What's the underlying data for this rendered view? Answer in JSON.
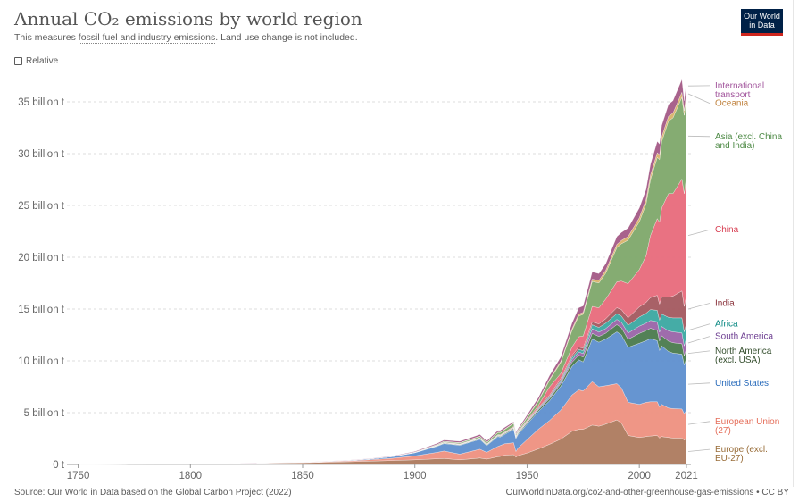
{
  "header": {
    "title": "Annual CO₂ emissions by world region",
    "subtitle_plain": "This measures ",
    "subtitle_term": "fossil fuel and industry emissions",
    "subtitle_rest": ". Land use change is not included."
  },
  "logo": {
    "line1": "Our World",
    "line2": "in Data",
    "bg_color": "#002147",
    "accent_color": "#ce261e"
  },
  "controls": {
    "relative_label": "Relative",
    "relative_checked": false
  },
  "footer": {
    "source": "Source: Our World in Data based on the Global Carbon Project (2022)",
    "link": "OurWorldInData.org/co2-and-other-greenhouse-gas-emissions • CC BY"
  },
  "chart_data": {
    "type": "area",
    "stacked": true,
    "title": "Annual CO₂ emissions by world region",
    "subtitle": "This measures fossil fuel and industry emissions. Land use change is not included.",
    "x": [
      1750,
      1800,
      1850,
      1870,
      1880,
      1890,
      1900,
      1910,
      1913,
      1920,
      1929,
      1932,
      1937,
      1938,
      1940,
      1944,
      1945,
      1946,
      1950,
      1955,
      1960,
      1965,
      1970,
      1973,
      1975,
      1979,
      1982,
      1985,
      1990,
      1992,
      1995,
      2000,
      2003,
      2005,
      2008,
      2009,
      2010,
      2013,
      2015,
      2019,
      2020,
      2021
    ],
    "xlim": [
      1745,
      2023
    ],
    "ylim": [
      0,
      37.5
    ],
    "yticks": [
      0,
      5,
      10,
      15,
      20,
      25,
      30,
      35
    ],
    "ytick_labels": [
      "0 t",
      "5 billion t",
      "10 billion t",
      "15 billion t",
      "20 billion t",
      "25 billion t",
      "30 billion t",
      "35 billion t"
    ],
    "xticks": [
      1750,
      1800,
      1850,
      1900,
      1950,
      2000,
      2021
    ],
    "xtick_labels": [
      "1750",
      "1800",
      "1850",
      "1900",
      "1950",
      "2000",
      "2021"
    ],
    "unit": "billion t",
    "grid": "horizontal dashed",
    "legend_position": "right (labels at series ends)",
    "series": [
      {
        "name": "Europe (excl. EU-27)",
        "color": "#a2559c",
        "fill": "#ad7a5e",
        "values": [
          0.009,
          0.03,
          0.16,
          0.26,
          0.32,
          0.38,
          0.45,
          0.55,
          0.58,
          0.45,
          0.62,
          0.52,
          0.75,
          0.78,
          0.9,
          0.95,
          0.7,
          0.85,
          1.1,
          1.5,
          1.95,
          2.45,
          3.2,
          3.4,
          3.4,
          3.8,
          3.7,
          3.9,
          4.3,
          4.0,
          2.8,
          2.6,
          2.7,
          2.75,
          2.8,
          2.55,
          2.7,
          2.6,
          2.55,
          2.55,
          2.35,
          2.5
        ]
      },
      {
        "name": "European Union (27)",
        "color": "#e56e5a",
        "fill": "#ee9080",
        "values": [
          0.0,
          0.002,
          0.03,
          0.08,
          0.14,
          0.22,
          0.38,
          0.62,
          0.72,
          0.55,
          0.85,
          0.65,
          1.0,
          1.05,
          1.1,
          1.15,
          0.55,
          0.75,
          1.3,
          1.9,
          2.3,
          2.8,
          3.5,
          3.8,
          3.7,
          4.2,
          3.8,
          3.7,
          3.5,
          3.4,
          3.2,
          3.2,
          3.3,
          3.3,
          3.25,
          3.0,
          3.1,
          2.85,
          2.85,
          2.8,
          2.55,
          2.75
        ]
      },
      {
        "name": "United States",
        "color": "#4c6a9c",
        "fill": "#5e8fcf",
        "values": [
          0.0,
          0.0003,
          0.005,
          0.04,
          0.07,
          0.15,
          0.3,
          0.6,
          0.72,
          0.85,
          0.95,
          0.65,
          0.95,
          0.82,
          0.9,
          1.3,
          1.25,
          1.3,
          1.5,
          1.7,
          1.9,
          2.3,
          2.75,
          2.9,
          2.8,
          4.1,
          4.3,
          4.5,
          5.0,
          5.1,
          5.3,
          5.9,
          5.95,
          6.1,
          5.9,
          5.45,
          5.65,
          5.45,
          5.35,
          5.3,
          4.7,
          5.0
        ]
      },
      {
        "name": "North America (excl. USA)",
        "color": "#286bbb",
        "fill": "#4a7a4d",
        "values": [
          0.0,
          0.0,
          0.0005,
          0.002,
          0.004,
          0.008,
          0.02,
          0.04,
          0.05,
          0.05,
          0.06,
          0.05,
          0.06,
          0.06,
          0.07,
          0.08,
          0.08,
          0.09,
          0.12,
          0.16,
          0.2,
          0.27,
          0.4,
          0.45,
          0.46,
          0.55,
          0.55,
          0.56,
          0.7,
          0.7,
          0.78,
          0.95,
          0.97,
          1.0,
          0.98,
          0.92,
          0.97,
          1.0,
          1.0,
          1.0,
          0.9,
          0.95
        ]
      },
      {
        "name": "South America",
        "color": "#883039",
        "fill": "#9a64a8",
        "values": [
          0.0,
          0.0,
          0.0,
          0.0005,
          0.001,
          0.002,
          0.005,
          0.01,
          0.012,
          0.015,
          0.02,
          0.02,
          0.025,
          0.03,
          0.03,
          0.035,
          0.035,
          0.04,
          0.05,
          0.08,
          0.12,
          0.16,
          0.25,
          0.3,
          0.35,
          0.45,
          0.42,
          0.45,
          0.5,
          0.52,
          0.6,
          0.7,
          0.72,
          0.75,
          0.85,
          0.85,
          0.9,
          1.0,
          1.05,
          1.05,
          0.95,
          1.05
        ]
      },
      {
        "name": "Africa",
        "color": "#d73c50",
        "fill": "#3ba8a1",
        "values": [
          0.0,
          0.0,
          0.0,
          0.0005,
          0.001,
          0.002,
          0.005,
          0.01,
          0.013,
          0.015,
          0.02,
          0.022,
          0.025,
          0.028,
          0.03,
          0.035,
          0.035,
          0.04,
          0.05,
          0.07,
          0.1,
          0.14,
          0.22,
          0.25,
          0.28,
          0.38,
          0.45,
          0.53,
          0.55,
          0.6,
          0.75,
          0.88,
          0.95,
          1.05,
          1.1,
          1.15,
          1.2,
          1.3,
          1.35,
          1.45,
          1.35,
          1.4
        ]
      },
      {
        "name": "India",
        "color": "#00847e",
        "fill": "#a3585f",
        "values": [
          0.0,
          0.0,
          0.0,
          0.001,
          0.002,
          0.005,
          0.01,
          0.02,
          0.025,
          0.03,
          0.035,
          0.035,
          0.04,
          0.045,
          0.05,
          0.06,
          0.065,
          0.065,
          0.07,
          0.08,
          0.12,
          0.17,
          0.2,
          0.23,
          0.25,
          0.28,
          0.35,
          0.42,
          0.58,
          0.63,
          0.72,
          0.98,
          1.05,
          1.15,
          1.45,
          1.55,
          1.65,
          1.95,
          2.1,
          2.6,
          2.45,
          2.7
        ]
      },
      {
        "name": "China",
        "color": "#970046",
        "fill": "#e86a7b",
        "values": [
          0.0,
          0.0,
          0.0,
          0.0,
          0.0,
          0.0,
          0.0,
          0.02,
          0.025,
          0.03,
          0.035,
          0.035,
          0.04,
          0.045,
          0.05,
          0.06,
          0.05,
          0.05,
          0.08,
          0.2,
          0.8,
          0.5,
          0.8,
          1.0,
          1.15,
          1.5,
          1.55,
          1.9,
          2.5,
          2.75,
          3.3,
          3.6,
          4.5,
          6.0,
          7.4,
          7.9,
          8.6,
          10.0,
          9.9,
          10.8,
          10.9,
          11.5
        ]
      },
      {
        "name": "Asia (excl. China and India)",
        "color": "#6d3e91",
        "fill": "#7ea86a",
        "values": [
          0.0,
          0.0,
          0.0,
          0.0003,
          0.001,
          0.005,
          0.02,
          0.06,
          0.08,
          0.1,
          0.12,
          0.13,
          0.2,
          0.22,
          0.25,
          0.3,
          0.15,
          0.1,
          0.25,
          0.4,
          0.65,
          1.05,
          1.6,
          2.0,
          2.1,
          2.4,
          2.4,
          2.5,
          3.3,
          3.6,
          4.2,
          4.6,
          5.0,
          5.4,
          5.9,
          6.05,
          6.4,
          7.0,
          7.3,
          7.9,
          7.55,
          7.7
        ]
      },
      {
        "name": "Oceania",
        "color": "#c05917",
        "fill": "#d9b36a",
        "values": [
          0.0,
          0.0,
          0.0,
          0.002,
          0.004,
          0.006,
          0.01,
          0.02,
          0.02,
          0.025,
          0.03,
          0.03,
          0.035,
          0.035,
          0.04,
          0.045,
          0.045,
          0.05,
          0.06,
          0.08,
          0.1,
          0.12,
          0.16,
          0.18,
          0.19,
          0.23,
          0.25,
          0.27,
          0.31,
          0.32,
          0.35,
          0.4,
          0.42,
          0.44,
          0.46,
          0.46,
          0.46,
          0.46,
          0.46,
          0.47,
          0.45,
          0.46
        ]
      },
      {
        "name": "International transport",
        "color": "#58ac8c",
        "fill": "#a35a86",
        "values": [
          0.0,
          0.0,
          0.01,
          0.02,
          0.03,
          0.04,
          0.06,
          0.1,
          0.12,
          0.13,
          0.16,
          0.13,
          0.16,
          0.17,
          0.16,
          0.12,
          0.13,
          0.15,
          0.2,
          0.28,
          0.35,
          0.42,
          0.55,
          0.62,
          0.62,
          0.7,
          0.65,
          0.65,
          0.75,
          0.78,
          0.82,
          0.95,
          0.98,
          1.05,
          1.1,
          1.05,
          1.1,
          1.15,
          1.2,
          1.25,
          0.95,
          1.05
        ]
      }
    ],
    "labels": [
      {
        "series": "International transport",
        "lines": [
          "International",
          "transport"
        ],
        "color": "#a2559c",
        "y": 36.3
      },
      {
        "series": "Oceania",
        "lines": [
          "Oceania"
        ],
        "color": "#c0823e",
        "y": 34.6
      },
      {
        "series": "Asia (excl. China and India)",
        "lines": [
          "Asia (excl. China",
          "and India)"
        ],
        "color": "#4e8a46",
        "y": 31.4
      },
      {
        "series": "China",
        "lines": [
          "China"
        ],
        "color": "#d73c50",
        "y": 22.4
      },
      {
        "series": "India",
        "lines": [
          "India"
        ],
        "color": "#883039",
        "y": 15.3
      },
      {
        "series": "Africa",
        "lines": [
          "Africa"
        ],
        "color": "#00847e",
        "y": 13.3
      },
      {
        "series": "South America",
        "lines": [
          "South America"
        ],
        "color": "#6d3e91",
        "y": 12.1
      },
      {
        "series": "North America (excl. USA)",
        "lines": [
          "North America",
          "(excl. USA)"
        ],
        "color": "#334d2c",
        "y": 10.7
      },
      {
        "series": "United States",
        "lines": [
          "United States"
        ],
        "color": "#286bbb",
        "y": 7.6
      },
      {
        "series": "European Union (27)",
        "lines": [
          "European Union",
          "(27)"
        ],
        "color": "#e56e5a",
        "y": 3.9
      },
      {
        "series": "Europe (excl. EU-27)",
        "lines": [
          "Europe (excl.",
          "EU-27)"
        ],
        "color": "#996d39",
        "y": 1.2
      }
    ]
  }
}
